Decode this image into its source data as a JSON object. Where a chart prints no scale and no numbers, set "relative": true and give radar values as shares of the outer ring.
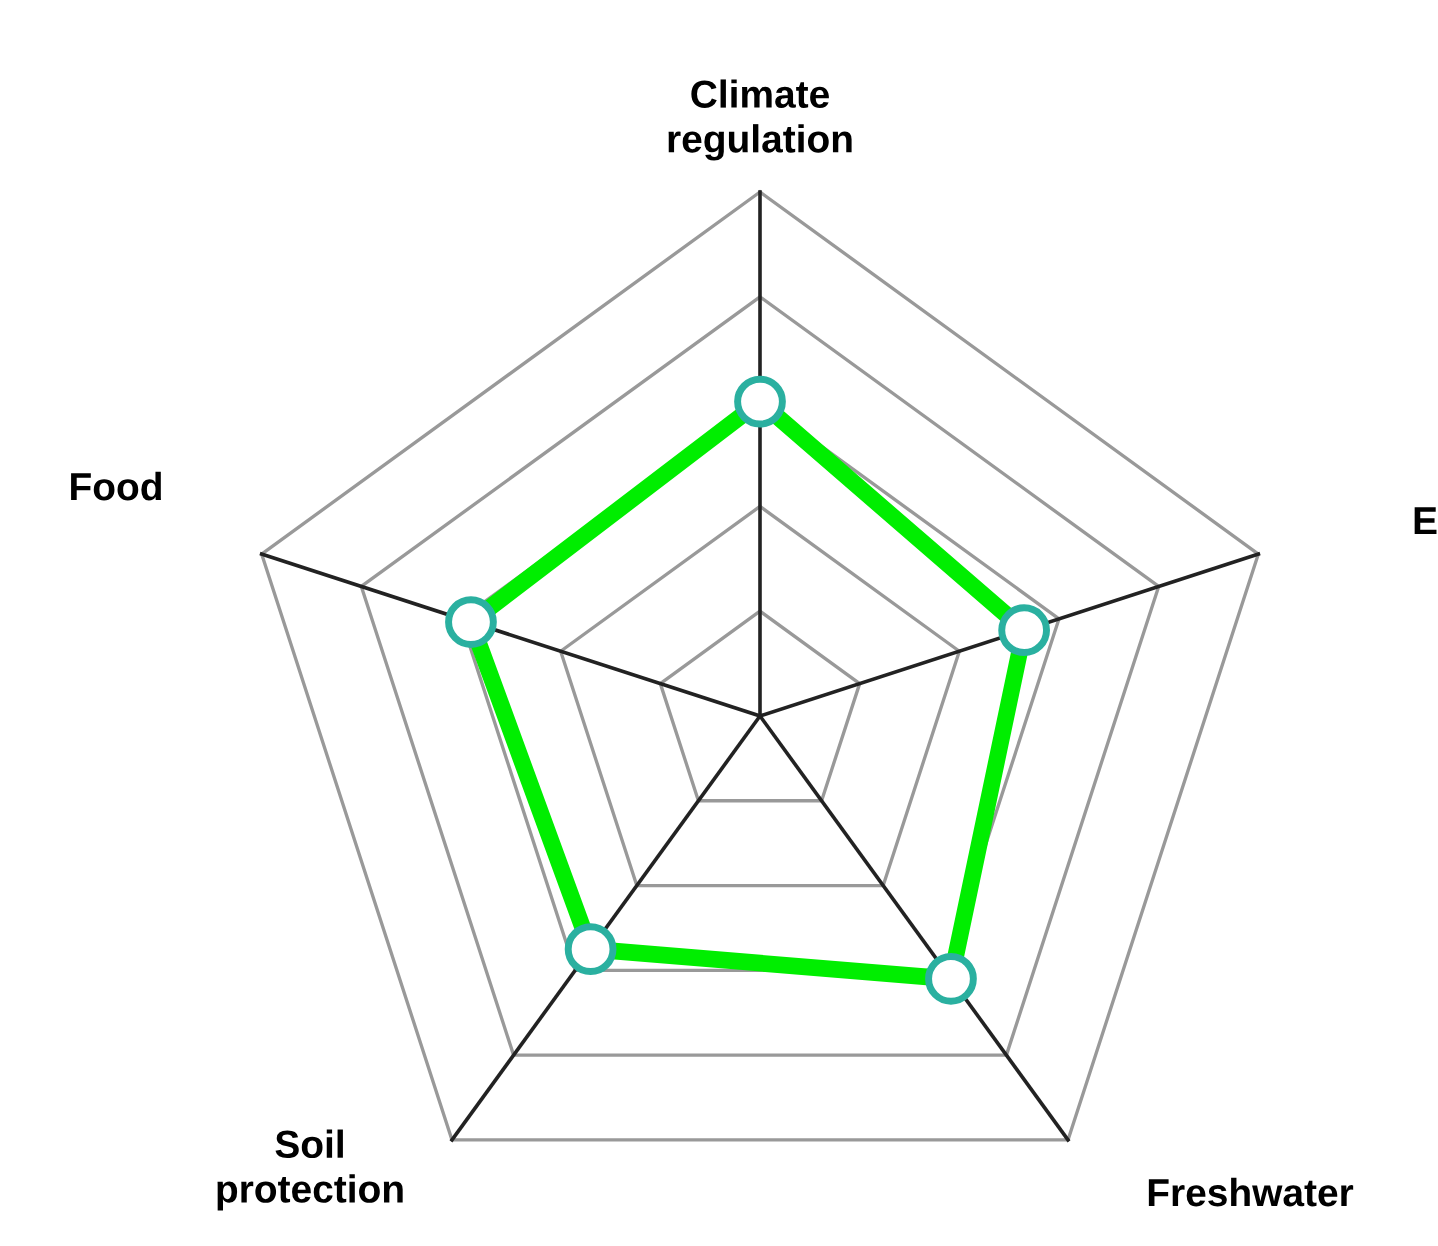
{
  "chart_data": {
    "type": "radar",
    "relative": true,
    "grid": true,
    "marker": "circle",
    "line_style": "solid",
    "categories": [
      "Climate\nregulation",
      "E",
      "Freshwater",
      "Soil\nprotection",
      "Food"
    ],
    "series": [
      {
        "color": "#00ee00",
        "values": [
          0.6,
          0.53,
          0.62,
          0.55,
          0.58
        ]
      }
    ]
  }
}
